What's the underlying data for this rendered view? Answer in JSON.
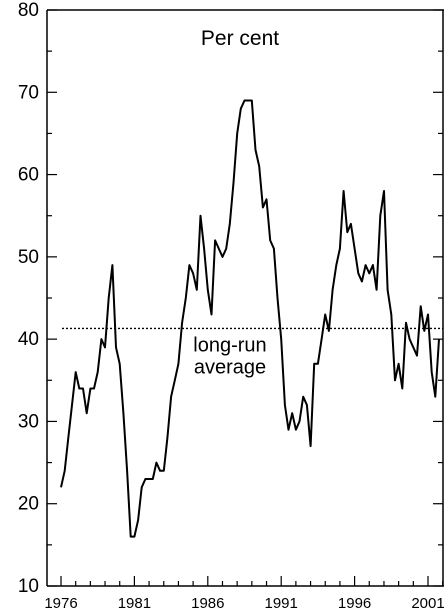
{
  "chart_data": {
    "type": "line",
    "unit_label": "Per cent",
    "xlabel": "",
    "ylabel": "",
    "x_ticks": [
      1976,
      1981,
      1986,
      1991,
      1996,
      2001
    ],
    "y_ticks": [
      10,
      20,
      30,
      40,
      50,
      60,
      70,
      80
    ],
    "xlim": [
      1975.5,
      2002.2
    ],
    "ylim": [
      10,
      80
    ],
    "grid": false,
    "series": [
      {
        "color": "#000000",
        "points": [
          [
            1976.0,
            22
          ],
          [
            1976.25,
            24
          ],
          [
            1976.5,
            28
          ],
          [
            1976.75,
            32
          ],
          [
            1977.0,
            36
          ],
          [
            1977.25,
            34
          ],
          [
            1977.5,
            34
          ],
          [
            1977.75,
            31
          ],
          [
            1978.0,
            34
          ],
          [
            1978.25,
            34
          ],
          [
            1978.5,
            36
          ],
          [
            1978.75,
            40
          ],
          [
            1979.0,
            39
          ],
          [
            1979.25,
            45
          ],
          [
            1979.5,
            49
          ],
          [
            1979.75,
            39
          ],
          [
            1980.0,
            37
          ],
          [
            1980.25,
            31
          ],
          [
            1980.5,
            24
          ],
          [
            1980.75,
            16
          ],
          [
            1981.0,
            16
          ],
          [
            1981.25,
            18
          ],
          [
            1981.5,
            22
          ],
          [
            1981.75,
            23
          ],
          [
            1982.0,
            23
          ],
          [
            1982.25,
            23
          ],
          [
            1982.5,
            25
          ],
          [
            1982.75,
            24
          ],
          [
            1983.0,
            24
          ],
          [
            1983.25,
            28
          ],
          [
            1983.5,
            33
          ],
          [
            1983.75,
            35
          ],
          [
            1984.0,
            37
          ],
          [
            1984.25,
            42
          ],
          [
            1984.5,
            45
          ],
          [
            1984.75,
            49
          ],
          [
            1985.0,
            48
          ],
          [
            1985.25,
            46
          ],
          [
            1985.5,
            55
          ],
          [
            1985.75,
            51
          ],
          [
            1986.0,
            46
          ],
          [
            1986.25,
            43
          ],
          [
            1986.5,
            52
          ],
          [
            1986.75,
            51
          ],
          [
            1987.0,
            50
          ],
          [
            1987.25,
            51
          ],
          [
            1987.5,
            54
          ],
          [
            1987.75,
            59
          ],
          [
            1988.0,
            65
          ],
          [
            1988.25,
            68
          ],
          [
            1988.5,
            69
          ],
          [
            1988.75,
            69
          ],
          [
            1989.0,
            69
          ],
          [
            1989.25,
            63
          ],
          [
            1989.5,
            61
          ],
          [
            1989.75,
            56
          ],
          [
            1990.0,
            57
          ],
          [
            1990.25,
            52
          ],
          [
            1990.5,
            51
          ],
          [
            1990.75,
            45
          ],
          [
            1991.0,
            40
          ],
          [
            1991.25,
            32
          ],
          [
            1991.5,
            29
          ],
          [
            1991.75,
            31
          ],
          [
            1992.0,
            29
          ],
          [
            1992.25,
            30
          ],
          [
            1992.5,
            33
          ],
          [
            1992.75,
            32
          ],
          [
            1993.0,
            27
          ],
          [
            1993.25,
            37
          ],
          [
            1993.5,
            37
          ],
          [
            1993.75,
            40
          ],
          [
            1994.0,
            43
          ],
          [
            1994.25,
            41
          ],
          [
            1994.5,
            46
          ],
          [
            1994.75,
            49
          ],
          [
            1995.0,
            51
          ],
          [
            1995.25,
            58
          ],
          [
            1995.5,
            53
          ],
          [
            1995.75,
            54
          ],
          [
            1996.0,
            51
          ],
          [
            1996.25,
            48
          ],
          [
            1996.5,
            47
          ],
          [
            1996.75,
            49
          ],
          [
            1997.0,
            48
          ],
          [
            1997.25,
            49
          ],
          [
            1997.5,
            46
          ],
          [
            1997.75,
            55
          ],
          [
            1998.0,
            58
          ],
          [
            1998.25,
            46
          ],
          [
            1998.5,
            43
          ],
          [
            1998.75,
            35
          ],
          [
            1999.0,
            37
          ],
          [
            1999.25,
            34
          ],
          [
            1999.5,
            42
          ],
          [
            1999.75,
            40
          ],
          [
            2000.0,
            39
          ],
          [
            2000.25,
            38
          ],
          [
            2000.5,
            44
          ],
          [
            2000.75,
            41
          ],
          [
            2001.0,
            43
          ],
          [
            2001.25,
            36
          ],
          [
            2001.5,
            33
          ],
          [
            2001.75,
            40
          ]
        ]
      }
    ],
    "reference_lines": [
      {
        "value": 41.3,
        "style": "dotted",
        "label_lines": [
          "long-run",
          "average"
        ]
      }
    ]
  }
}
